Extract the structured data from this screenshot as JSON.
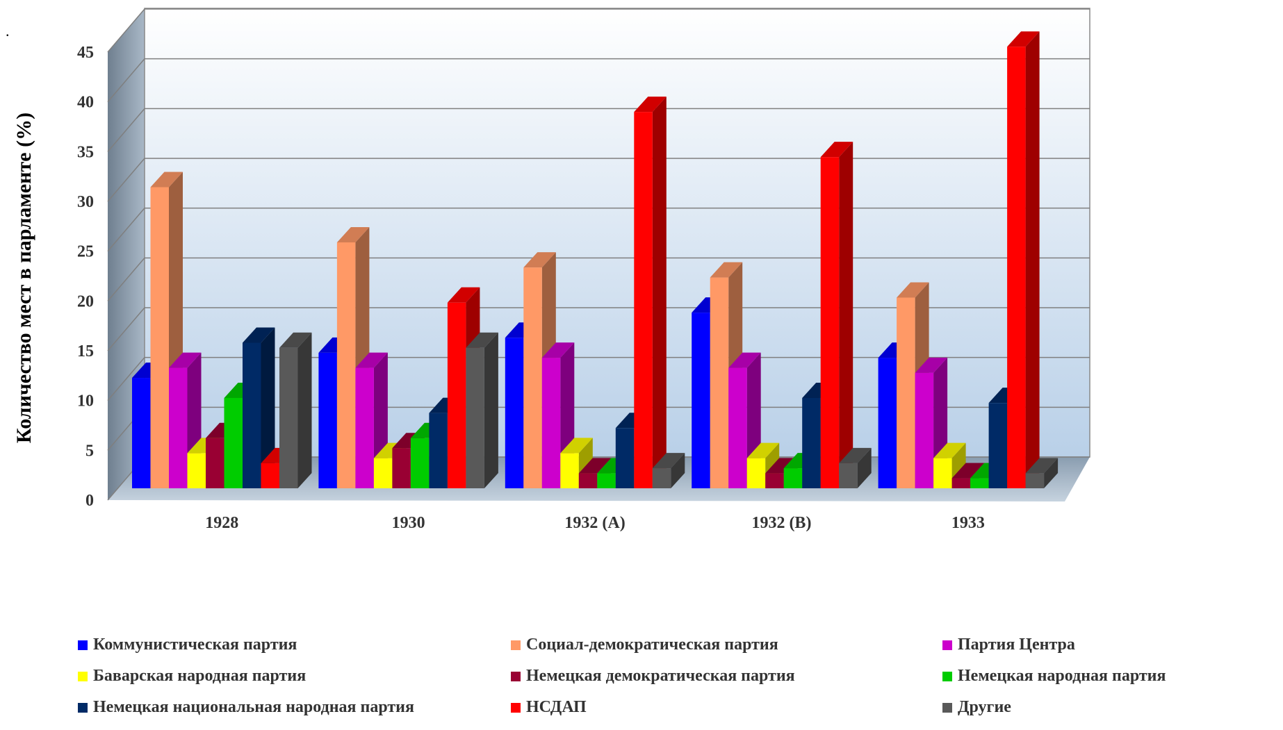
{
  "chart_data": {
    "type": "bar",
    "title": "",
    "xlabel": "",
    "ylabel": "Количество мест в парламенте (%)",
    "ylim": [
      0,
      45
    ],
    "yticks": [
      0,
      5,
      10,
      15,
      20,
      25,
      30,
      35,
      40,
      45
    ],
    "grid": true,
    "legend_position": "bottom",
    "categories": [
      "1928",
      "1930",
      "1932 (A)",
      "1932 (B)",
      "1933"
    ],
    "series": [
      {
        "name": "Коммунистическая партия",
        "color": "#0000ff",
        "values": [
          11,
          13.5,
          15,
          17.5,
          13
        ]
      },
      {
        "name": "Социал-демократическая партия",
        "color": "#ff9966",
        "values": [
          30,
          24.5,
          22,
          21,
          19
        ]
      },
      {
        "name": "Партия Центра",
        "color": "#cc00cc",
        "values": [
          12,
          12,
          13,
          12,
          11.5
        ]
      },
      {
        "name": "Баварская народная партия",
        "color": "#ffff00",
        "values": [
          3.5,
          3,
          3.5,
          3,
          3
        ]
      },
      {
        "name": "Немецкая демократическая партия",
        "color": "#990033",
        "values": [
          5,
          4,
          1.5,
          1.5,
          1
        ]
      },
      {
        "name": "Немецкая народная партия",
        "color": "#00cc00",
        "values": [
          9,
          5,
          1.5,
          2,
          1
        ]
      },
      {
        "name": "Немецкая национальная народная партия",
        "color": "#002a66",
        "values": [
          14.5,
          7.5,
          6,
          9,
          8.5
        ]
      },
      {
        "name": "НСДАП",
        "color": "#ff0000",
        "values": [
          2.5,
          18.5,
          37.5,
          33,
          44
        ]
      },
      {
        "name": "Другие",
        "color": "#595959",
        "values": [
          14,
          14,
          2,
          2.5,
          1.5
        ]
      }
    ]
  },
  "stray_mark": "."
}
